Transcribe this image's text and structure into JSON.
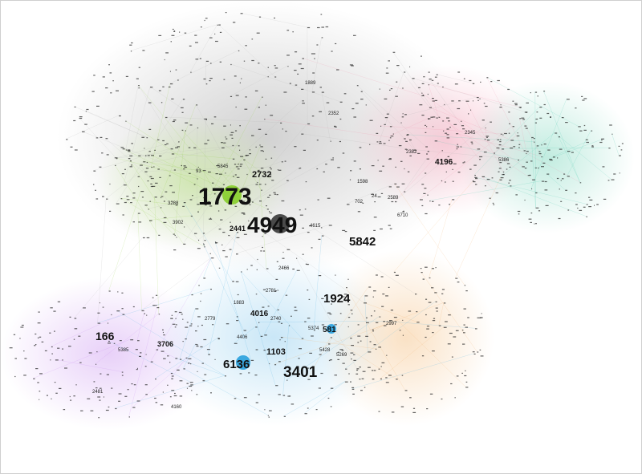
{
  "colors": {
    "background": "#ffffff",
    "green": "#8fd13a",
    "gray": "#7a7a7a",
    "pink": "#f08aa6",
    "teal": "#3cc6a6",
    "purple": "#c27cf0",
    "blue": "#3aa8e0",
    "orange": "#f2a85a"
  },
  "hub_labels": [
    {
      "text": "1773",
      "cluster": "green",
      "size": "xl"
    },
    {
      "text": "4949",
      "cluster": "gray",
      "size": "xl"
    },
    {
      "text": "3401",
      "cluster": "gray",
      "size": "l"
    },
    {
      "text": "5842",
      "cluster": "gray",
      "size": "m"
    },
    {
      "text": "1924",
      "cluster": "gray",
      "size": "m"
    },
    {
      "text": "6136",
      "cluster": "blue",
      "size": "m"
    },
    {
      "text": "166",
      "cluster": "purple",
      "size": "m"
    },
    {
      "text": "2732",
      "cluster": "gray",
      "size": "s"
    },
    {
      "text": "4196",
      "cluster": "pink",
      "size": "s"
    },
    {
      "text": "1103",
      "cluster": "gray",
      "size": "s"
    },
    {
      "text": "4016",
      "cluster": "blue",
      "size": "s"
    },
    {
      "text": "3706",
      "cluster": "purple",
      "size": "s"
    },
    {
      "text": "2441",
      "cluster": "gray",
      "size": "s"
    },
    {
      "text": "581",
      "cluster": "blue",
      "size": "s"
    }
  ],
  "minor_labels": [
    "1883",
    "2740",
    "4406",
    "2481",
    "5385",
    "3288",
    "3902",
    "93",
    "5845",
    "2466",
    "1598",
    "6710",
    "2345",
    "2382",
    "2997",
    "5269",
    "5428",
    "5374",
    "2352",
    "1889",
    "702",
    "24",
    "2589",
    "5386",
    "2781",
    "2779",
    "4160",
    "4615"
  ]
}
